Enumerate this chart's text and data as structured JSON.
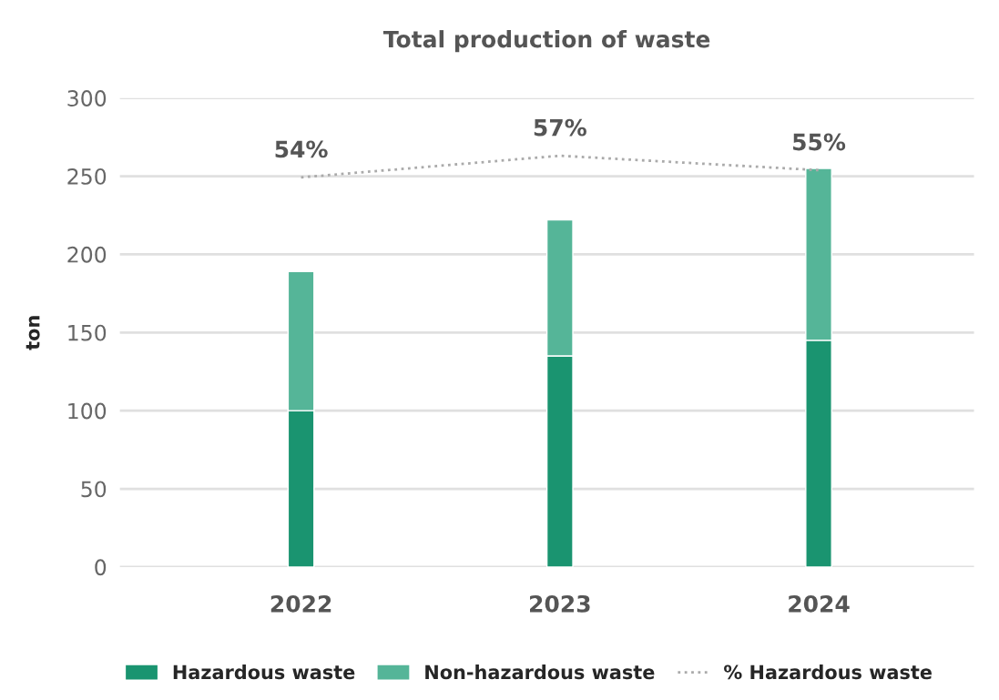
{
  "chart_data": {
    "type": "bar",
    "title": "Total production of waste",
    "ylabel": "ton",
    "stacked": true,
    "categories": [
      "2022",
      "2023",
      "2024"
    ],
    "series": [
      {
        "name": "Hazardous waste",
        "color": "#1a9470",
        "values": [
          100,
          135,
          145
        ]
      },
      {
        "name": "Non-hazardous waste",
        "color": "#55b598",
        "values": [
          89,
          87,
          110
        ]
      },
      {
        "name": "% Hazardous waste",
        "type": "line",
        "axis": "y2",
        "color": "#aaaaaa",
        "line_style": "dotted",
        "marker": "none",
        "values": [
          54,
          57,
          55
        ],
        "value_labels": [
          "54%",
          "57%",
          "55%"
        ]
      }
    ],
    "ylim": [
      0,
      300
    ],
    "yticks": [
      0,
      50,
      100,
      150,
      200,
      250,
      300
    ],
    "y2lim": [
      0,
      65
    ],
    "grid": "y",
    "legend": "bottom"
  }
}
